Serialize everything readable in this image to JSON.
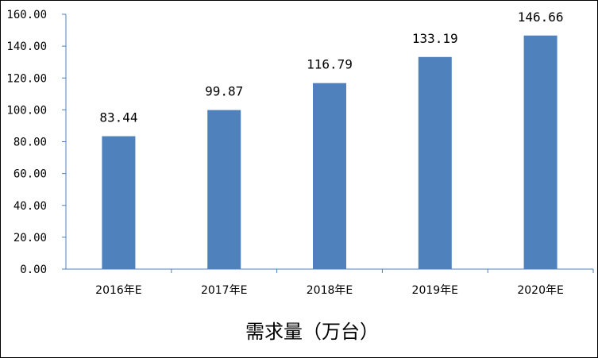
{
  "chart_data": {
    "type": "bar",
    "title": "需求量（万台）",
    "categories": [
      "2016年E",
      "2017年E",
      "2018年E",
      "2019年E",
      "2020年E"
    ],
    "values": [
      83.44,
      99.87,
      116.79,
      133.19,
      146.66
    ],
    "data_labels": [
      "83.44",
      "99.87",
      "116.79",
      "133.19",
      "146.66"
    ],
    "ylim": [
      0,
      160
    ],
    "yticks": [
      "0.00",
      "20.00",
      "40.00",
      "60.00",
      "80.00",
      "100.00",
      "120.00",
      "140.00",
      "160.00"
    ],
    "xlabel": "",
    "ylabel": "",
    "grid": false,
    "legend": "none",
    "bar_color": "#4F81BD",
    "axis_color": "#4F81BD"
  }
}
